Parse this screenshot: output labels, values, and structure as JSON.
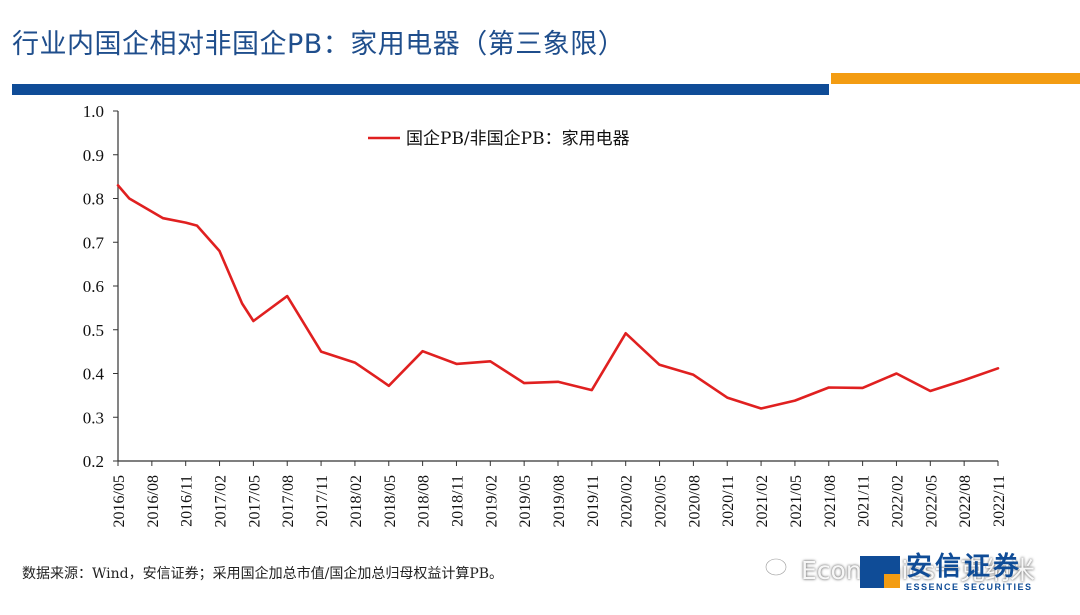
{
  "header": {
    "title": "行业内国企相对非国企PB：家用电器（第三象限）"
  },
  "colors": {
    "title": "#1f4e8c",
    "bar_blue": "#0f4c97",
    "bar_orange": "#f39c12",
    "series_line": "#e02020",
    "axis": "#333333"
  },
  "chart_data": {
    "type": "line",
    "x": [
      "2016/05",
      "2016/06",
      "2016/07",
      "2016/08",
      "2016/09",
      "2016/10",
      "2016/11",
      "2016/12",
      "2017/01",
      "2017/02",
      "2017/03",
      "2017/04",
      "2017/05",
      "2017/06",
      "2017/07",
      "2017/08",
      "2017/09",
      "2017/10",
      "2017/11",
      "2017/12",
      "2018/01",
      "2018/02",
      "2018/03",
      "2018/04",
      "2018/05",
      "2018/06",
      "2018/07",
      "2018/08",
      "2018/09",
      "2018/10",
      "2018/11",
      "2018/12",
      "2019/01",
      "2019/02",
      "2019/03",
      "2019/04",
      "2019/05",
      "2019/06",
      "2019/07",
      "2019/08",
      "2019/09",
      "2019/10",
      "2019/11",
      "2019/12",
      "2020/01",
      "2020/02",
      "2020/03",
      "2020/04",
      "2020/05",
      "2020/06",
      "2020/07",
      "2020/08",
      "2020/09",
      "2020/10",
      "2020/11",
      "2020/12",
      "2021/01",
      "2021/02",
      "2021/03",
      "2021/04",
      "2021/05",
      "2021/06",
      "2021/07",
      "2021/08",
      "2021/09",
      "2021/10",
      "2021/11",
      "2021/12",
      "2022/01",
      "2022/02",
      "2022/03",
      "2022/04",
      "2022/05",
      "2022/06",
      "2022/07",
      "2022/08",
      "2022/09",
      "2022/10",
      "2022/11"
    ],
    "tick_labels": [
      "2016/05",
      "2016/08",
      "2016/11",
      "2017/02",
      "2017/05",
      "2017/08",
      "2017/11",
      "2018/02",
      "2018/05",
      "2018/08",
      "2018/11",
      "2019/02",
      "2019/05",
      "2019/08",
      "2019/11",
      "2020/02",
      "2020/05",
      "2020/08",
      "2020/11",
      "2021/02",
      "2021/05",
      "2021/08",
      "2021/11",
      "2022/02",
      "2022/05",
      "2022/08",
      "2022/11"
    ],
    "series": [
      {
        "name": "国企PB/非国企PB：家用电器",
        "color": "#e02020",
        "points": [
          {
            "x": "2016/05",
            "y": 0.83
          },
          {
            "x": "2016/06",
            "y": 0.8
          },
          {
            "x": "2016/08",
            "y": 0.77
          },
          {
            "x": "2016/09",
            "y": 0.755
          },
          {
            "x": "2016/11",
            "y": 0.745
          },
          {
            "x": "2016/12",
            "y": 0.738
          },
          {
            "x": "2017/02",
            "y": 0.68
          },
          {
            "x": "2017/04",
            "y": 0.56
          },
          {
            "x": "2017/05",
            "y": 0.52
          },
          {
            "x": "2017/08",
            "y": 0.577
          },
          {
            "x": "2017/11",
            "y": 0.45
          },
          {
            "x": "2018/02",
            "y": 0.425
          },
          {
            "x": "2018/04",
            "y": 0.39
          },
          {
            "x": "2018/05",
            "y": 0.372
          },
          {
            "x": "2018/08",
            "y": 0.451
          },
          {
            "x": "2018/11",
            "y": 0.422
          },
          {
            "x": "2019/02",
            "y": 0.428
          },
          {
            "x": "2019/05",
            "y": 0.378
          },
          {
            "x": "2019/08",
            "y": 0.381
          },
          {
            "x": "2019/11",
            "y": 0.362
          },
          {
            "x": "2020/02",
            "y": 0.492
          },
          {
            "x": "2020/05",
            "y": 0.42
          },
          {
            "x": "2020/08",
            "y": 0.397
          },
          {
            "x": "2020/11",
            "y": 0.345
          },
          {
            "x": "2021/02",
            "y": 0.32
          },
          {
            "x": "2021/05",
            "y": 0.338
          },
          {
            "x": "2021/08",
            "y": 0.368
          },
          {
            "x": "2021/11",
            "y": 0.367
          },
          {
            "x": "2022/02",
            "y": 0.4
          },
          {
            "x": "2022/05",
            "y": 0.36
          },
          {
            "x": "2022/08",
            "y": 0.385
          },
          {
            "x": "2022/11",
            "y": 0.412
          }
        ]
      }
    ],
    "yticks": [
      0.2,
      0.3,
      0.4,
      0.5,
      0.6,
      0.7,
      0.8,
      0.9,
      1.0
    ],
    "ytick_labels": [
      "0.2",
      "0.3",
      "0.4",
      "0.5",
      "0.6",
      "0.7",
      "0.8",
      "0.9",
      "1.0"
    ],
    "ylim": [
      0.2,
      1.0
    ],
    "grid": false,
    "legend_position": "top-center"
  },
  "footer": {
    "source_note": "数据来源：Wind，安信证券；采用国企加总市值/国企加总归母权益计算PB。",
    "watermark_text": "Economics一克纳米",
    "logo_cn": "安信证券",
    "logo_en": "ESSENCE SECURITIES"
  }
}
